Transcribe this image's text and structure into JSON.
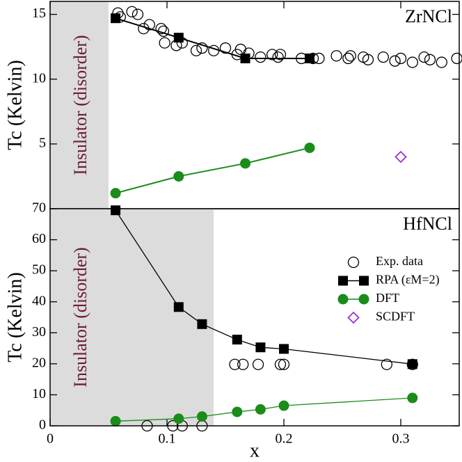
{
  "chart_data": [
    {
      "type": "scatter",
      "title": "ZrNCl",
      "ylabel": "Tc (Kelvin)",
      "annotation": "Insulator (disorder)",
      "shade": [
        0,
        0.05
      ],
      "shade_color": "#dcdcdc",
      "xlim": [
        0,
        0.35
      ],
      "ylim": [
        0,
        16
      ],
      "yticks": [
        5,
        10,
        15
      ],
      "series": [
        {
          "name": "Exp. data",
          "marker": "circle-open",
          "line": false,
          "color": "#000000",
          "x": [
            0.058,
            0.06,
            0.07,
            0.075,
            0.08,
            0.085,
            0.095,
            0.097,
            0.098,
            0.108,
            0.113,
            0.125,
            0.13,
            0.14,
            0.15,
            0.16,
            0.163,
            0.17,
            0.18,
            0.19,
            0.195,
            0.197,
            0.215,
            0.225,
            0.23,
            0.245,
            0.255,
            0.257,
            0.268,
            0.272,
            0.285,
            0.295,
            0.3,
            0.31,
            0.32,
            0.325,
            0.335,
            0.348
          ],
          "values": [
            15.1,
            14.8,
            15.2,
            15.0,
            13.9,
            14.2,
            13.9,
            13.7,
            12.8,
            12.6,
            12.8,
            12.2,
            12.4,
            12.2,
            12.4,
            11.9,
            12.3,
            12.0,
            11.7,
            11.9,
            11.7,
            11.9,
            11.6,
            11.6,
            11.6,
            11.8,
            11.6,
            11.8,
            11.7,
            11.5,
            11.7,
            11.4,
            11.6,
            11.3,
            11.7,
            11.5,
            11.3,
            11.6
          ]
        },
        {
          "name": "RPA (εM=2)",
          "marker": "square",
          "line": true,
          "color": "#000000",
          "x": [
            0.056,
            0.11,
            0.167,
            0.222
          ],
          "values": [
            14.7,
            13.2,
            11.6,
            11.6
          ]
        },
        {
          "name": "DFT",
          "marker": "circle",
          "line": true,
          "color": "#1a8c1a",
          "x": [
            0.056,
            0.11,
            0.167,
            0.222
          ],
          "values": [
            1.2,
            2.5,
            3.5,
            4.7
          ]
        },
        {
          "name": "SCDFT",
          "marker": "diamond-open",
          "line": false,
          "color": "#9b30d0",
          "x": [
            0.3
          ],
          "values": [
            4.0
          ]
        }
      ]
    },
    {
      "type": "scatter",
      "title": "HfNCl",
      "ylabel": "Tc (Kelvin)",
      "xlabel": "x",
      "annotation": "Insulator (disorder)",
      "shade": [
        0,
        0.14
      ],
      "shade_color": "#dcdcdc",
      "legend": "upper right",
      "xlim": [
        0,
        0.35
      ],
      "ylim": [
        0,
        70
      ],
      "xticks": [
        0,
        0.1,
        0.2,
        0.3
      ],
      "yticks": [
        0,
        10,
        20,
        30,
        40,
        50,
        60,
        70
      ],
      "series": [
        {
          "name": "Exp. data",
          "marker": "circle-open",
          "line": false,
          "color": "#000000",
          "x": [
            0.083,
            0.105,
            0.113,
            0.13,
            0.158,
            0.165,
            0.178,
            0.197,
            0.2,
            0.288,
            0.31
          ],
          "values": [
            0,
            0,
            0,
            0,
            19.8,
            19.8,
            19.8,
            19.8,
            19.8,
            19.8,
            19.8
          ]
        },
        {
          "name": "RPA (εM=2)",
          "marker": "square",
          "line": true,
          "color": "#000000",
          "x": [
            0.056,
            0.11,
            0.13,
            0.16,
            0.18,
            0.2,
            0.31
          ],
          "values": [
            69.5,
            38.3,
            32.8,
            27.8,
            25.3,
            24.8,
            19.9
          ]
        },
        {
          "name": "DFT",
          "marker": "circle",
          "line": true,
          "color": "#1a8c1a",
          "x": [
            0.056,
            0.11,
            0.13,
            0.16,
            0.18,
            0.2,
            0.31
          ],
          "values": [
            1.5,
            2.3,
            3.0,
            4.5,
            5.3,
            6.5,
            9.0
          ]
        },
        {
          "name": "SCDFT",
          "marker": "diamond-open",
          "line": false,
          "color": "#9b30d0",
          "x": [],
          "values": []
        }
      ]
    }
  ]
}
